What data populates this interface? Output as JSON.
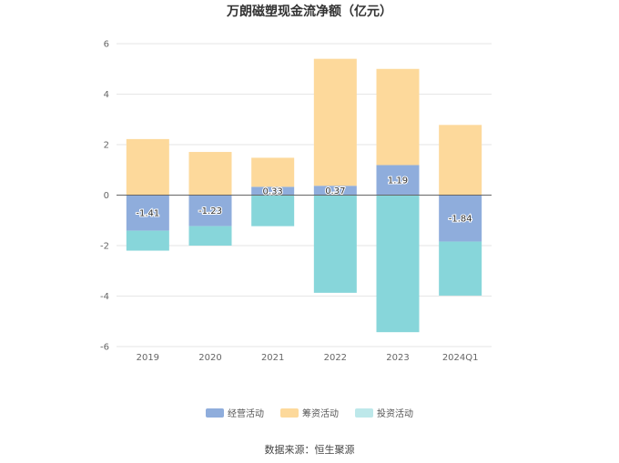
{
  "title": "万朗磁塑现金流净额（亿元）",
  "source": "数据来源：恒生聚源",
  "chart_data": {
    "type": "bar",
    "stacked": true,
    "title": "万朗磁塑现金流净额（亿元）",
    "xlabel": "",
    "ylabel": "",
    "categories": [
      "2019",
      "2020",
      "2021",
      "2022",
      "2023",
      "2024Q1"
    ],
    "ylim": [
      -6,
      6
    ],
    "yticks": [
      6,
      4,
      2,
      0,
      -2,
      -4,
      -6
    ],
    "grid": true,
    "legend_position": "bottom",
    "series": [
      {
        "name": "经营活动",
        "color": "#8FADDC",
        "values": [
          -1.41,
          -1.23,
          0.33,
          0.37,
          1.19,
          -1.84
        ],
        "show_labels": true
      },
      {
        "name": "筹资活动",
        "color": "#FDD99B",
        "values": [
          2.22,
          1.71,
          1.15,
          5.03,
          3.81,
          2.78
        ],
        "show_labels": false
      },
      {
        "name": "投资活动",
        "color": "#87D6DA",
        "values": [
          -0.79,
          -0.77,
          -1.23,
          -3.87,
          -5.43,
          -2.14
        ],
        "show_labels": false
      }
    ],
    "legend_colors": [
      "#8FADDC",
      "#FDD99B",
      "#BDE8EA"
    ]
  }
}
